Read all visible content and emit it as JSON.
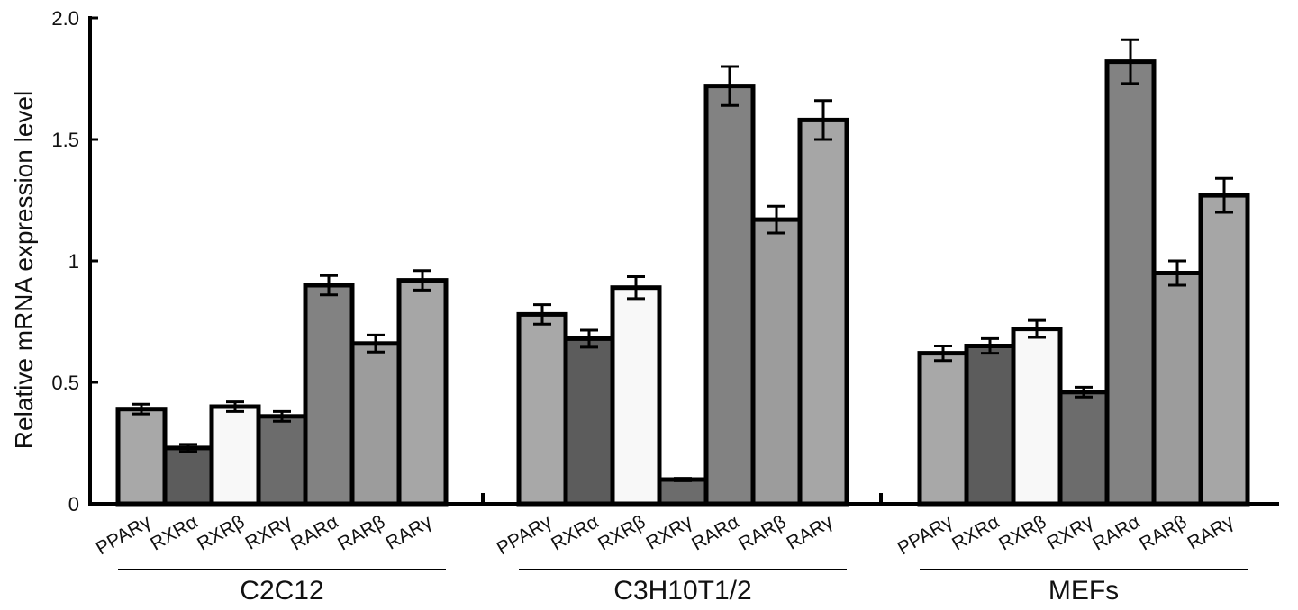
{
  "chart_data": {
    "type": "bar",
    "title": "",
    "xlabel": "",
    "ylabel": "Relative mRNA expression level",
    "ylim": [
      0,
      2.0
    ],
    "yticks": [
      {
        "value": 0,
        "label": "0"
      },
      {
        "value": 0.5,
        "label": "0.5"
      },
      {
        "value": 1,
        "label": "1"
      },
      {
        "value": 1.5,
        "label": "1.5"
      },
      {
        "value": 2.0,
        "label": "2.0"
      }
    ],
    "grid": false,
    "legend": "none",
    "categories": [
      "PPARγ",
      "RXRα",
      "RXRβ",
      "RXRγ",
      "RARα",
      "RARβ",
      "RARγ"
    ],
    "category_colors": [
      "#a8a8a8",
      "#5c5c5c",
      "#f8f8f8",
      "#6c6c6c",
      "#828282",
      "#9c9c9c",
      "#a6a6a6"
    ],
    "groups": [
      {
        "name": "C2C12",
        "values": [
          0.39,
          0.23,
          0.4,
          0.36,
          0.9,
          0.66,
          0.92
        ],
        "errors": [
          0.02,
          0.015,
          0.02,
          0.02,
          0.04,
          0.035,
          0.04
        ]
      },
      {
        "name": "C3H10T1/2",
        "values": [
          0.78,
          0.68,
          0.89,
          0.1,
          1.72,
          1.17,
          1.58
        ],
        "errors": [
          0.04,
          0.035,
          0.045,
          0.005,
          0.08,
          0.055,
          0.08
        ]
      },
      {
        "name": "MEFs",
        "values": [
          0.62,
          0.65,
          0.72,
          0.46,
          1.82,
          0.95,
          1.27
        ],
        "errors": [
          0.03,
          0.03,
          0.035,
          0.02,
          0.09,
          0.05,
          0.07
        ]
      }
    ]
  }
}
